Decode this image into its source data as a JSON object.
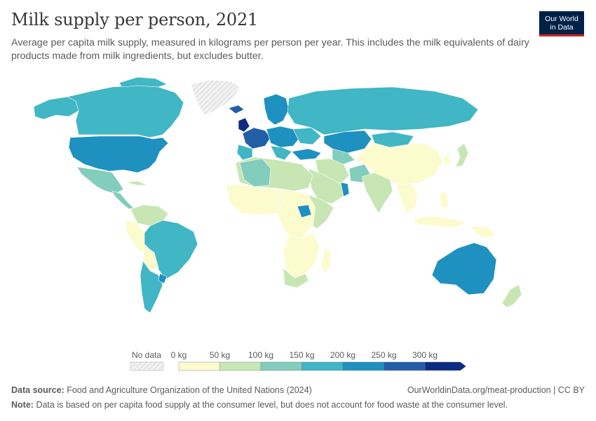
{
  "header": {
    "title": "Milk supply per person, 2021",
    "subtitle": "Average per capita milk supply, measured in kilograms per person per year. This includes the milk equivalents of dairy products made from milk ingredients, but excludes butter."
  },
  "logo": {
    "line1": "Our World",
    "line2": "in Data"
  },
  "legend": {
    "no_data_label": "No data",
    "tick_labels": [
      "0 kg",
      "50 kg",
      "100 kg",
      "150 kg",
      "200 kg",
      "250 kg",
      "300 kg"
    ],
    "bin_colors": [
      "#fcfbcd",
      "#c7e6b4",
      "#82cdbb",
      "#41b6c4",
      "#1e91c0",
      "#225ea8",
      "#0c2c84"
    ]
  },
  "footer": {
    "source_label": "Data source:",
    "source_text": "Food and Agriculture Organization of the United Nations (2024)",
    "url": "OurWorldinData.org/meat-production | CC BY",
    "note_label": "Note:",
    "note_text": "Data is based on per capita food supply at the consumer level, but does not account for food waste at the consumer level."
  },
  "colors": {
    "ocean": "#ffffff",
    "border": "#ffffff",
    "no_data": "#e4e4e4"
  }
}
